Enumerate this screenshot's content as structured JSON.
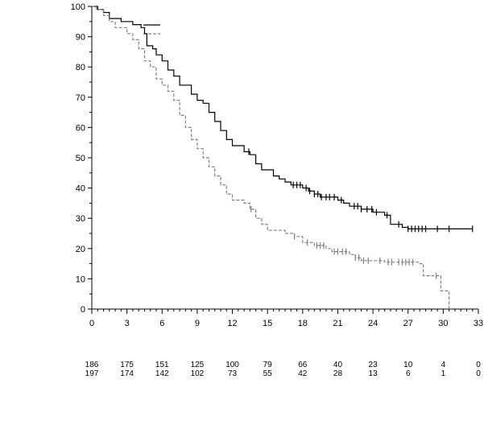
{
  "chart_data": {
    "type": "line",
    "step": true,
    "title": "",
    "xlabel": "",
    "ylabel": "",
    "xlim": [
      0,
      33
    ],
    "ylim": [
      0,
      100
    ],
    "xticks": [
      0,
      3,
      6,
      9,
      12,
      15,
      18,
      21,
      24,
      27,
      30,
      33
    ],
    "yticks": [
      0,
      10,
      20,
      30,
      40,
      50,
      60,
      70,
      80,
      90,
      100
    ],
    "grid": false,
    "legend": {
      "placement": "top-left",
      "entries": [
        {
          "series": 0,
          "label": ""
        },
        {
          "series": 1,
          "label": ""
        }
      ]
    },
    "series": [
      {
        "color": "#000000",
        "style": "solid",
        "points": [
          [
            0,
            100
          ],
          [
            0.5,
            99
          ],
          [
            1,
            98
          ],
          [
            1.5,
            96
          ],
          [
            2.5,
            95
          ],
          [
            3.5,
            94
          ],
          [
            4.2,
            93
          ],
          [
            4.5,
            91
          ],
          [
            4.7,
            87
          ],
          [
            5.2,
            86
          ],
          [
            5.5,
            84
          ],
          [
            6,
            82
          ],
          [
            6.5,
            79
          ],
          [
            7,
            77
          ],
          [
            7.5,
            74
          ],
          [
            8.5,
            71
          ],
          [
            9,
            69
          ],
          [
            9.5,
            68
          ],
          [
            10,
            65
          ],
          [
            10.5,
            62
          ],
          [
            11,
            59
          ],
          [
            11.5,
            56
          ],
          [
            12,
            54
          ],
          [
            13,
            52
          ],
          [
            13.5,
            51
          ],
          [
            14,
            48
          ],
          [
            14.5,
            46
          ],
          [
            15.5,
            44
          ],
          [
            16,
            43
          ],
          [
            16.5,
            42
          ],
          [
            17,
            41
          ],
          [
            18,
            40
          ],
          [
            18.5,
            39
          ],
          [
            19,
            38
          ],
          [
            19.5,
            37
          ],
          [
            21,
            36
          ],
          [
            21.5,
            35
          ],
          [
            22,
            34
          ],
          [
            23,
            33
          ],
          [
            24,
            32
          ],
          [
            25,
            31
          ],
          [
            25.5,
            28
          ],
          [
            26.5,
            27
          ],
          [
            27,
            26.5
          ],
          [
            32.5,
            26.5
          ]
        ],
        "censored": [
          13.4,
          17.2,
          17.5,
          17.8,
          18.3,
          18.6,
          19,
          19.3,
          19.6,
          20,
          20.3,
          20.7,
          21.3,
          22.4,
          22.7,
          23,
          23.5,
          23.9,
          24.3,
          25.2,
          26.2,
          27,
          27.3,
          27.6,
          27.9,
          28.2,
          28.5,
          29.5,
          30.5,
          32.5
        ]
      },
      {
        "color": "#808080",
        "style": "dashed",
        "points": [
          [
            0,
            100
          ],
          [
            0.4,
            99
          ],
          [
            1,
            97
          ],
          [
            1.5,
            95
          ],
          [
            2,
            93
          ],
          [
            3,
            91
          ],
          [
            3.5,
            89
          ],
          [
            4,
            86
          ],
          [
            4.5,
            82
          ],
          [
            5,
            80
          ],
          [
            5.5,
            76
          ],
          [
            6,
            74
          ],
          [
            6.5,
            72
          ],
          [
            7,
            69
          ],
          [
            7.5,
            64
          ],
          [
            8,
            60
          ],
          [
            8.5,
            56
          ],
          [
            9,
            53
          ],
          [
            9.5,
            50
          ],
          [
            10,
            47
          ],
          [
            10.5,
            44
          ],
          [
            11,
            41
          ],
          [
            11.5,
            38
          ],
          [
            12,
            36
          ],
          [
            13,
            35
          ],
          [
            13.5,
            33
          ],
          [
            14,
            30
          ],
          [
            14.5,
            28
          ],
          [
            15,
            26
          ],
          [
            16.5,
            25
          ],
          [
            17.3,
            24
          ],
          [
            18,
            22
          ],
          [
            19,
            21
          ],
          [
            20,
            20
          ],
          [
            20.5,
            19
          ],
          [
            22,
            18
          ],
          [
            22.5,
            17
          ],
          [
            23,
            16
          ],
          [
            25,
            15.5
          ],
          [
            28,
            15
          ],
          [
            28.3,
            11
          ],
          [
            29.8,
            6
          ],
          [
            30.5,
            0
          ]
        ],
        "censored": [
          13.6,
          17.3,
          18.4,
          19.2,
          19.5,
          19.8,
          20.7,
          21,
          21.4,
          21.7,
          22.5,
          22.8,
          23.2,
          23.6,
          24.6,
          25.3,
          25.6,
          26.2,
          26.5,
          26.8,
          27.1,
          27.4,
          29.4
        ]
      }
    ],
    "risk_table": {
      "timepoints": [
        0,
        3,
        6,
        9,
        12,
        15,
        18,
        21,
        24,
        27,
        30,
        33
      ],
      "rows": [
        [
          186,
          175,
          151,
          125,
          100,
          79,
          66,
          40,
          23,
          10,
          4,
          0
        ],
        [
          197,
          174,
          142,
          102,
          73,
          55,
          42,
          28,
          13,
          6,
          1,
          0
        ]
      ]
    }
  }
}
